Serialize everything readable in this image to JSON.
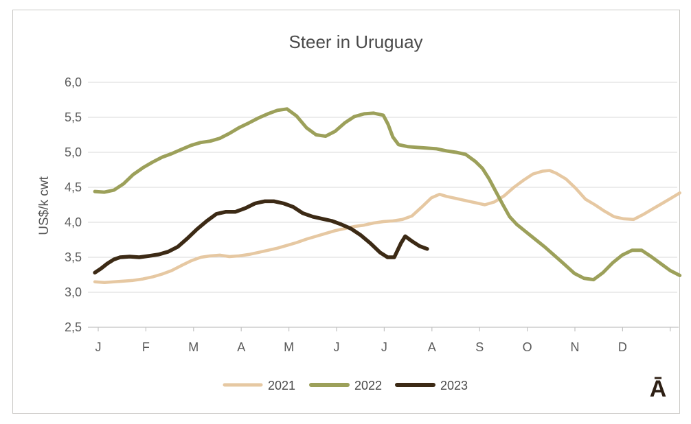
{
  "title": "Steer in Uruguay",
  "y_axis_title": "US$/k cwt",
  "annotation": "Ā",
  "colors": {
    "s2021": "#e6c8a2",
    "s2022": "#9ca05a",
    "s2023": "#3c2a15",
    "gridline": "#dadada",
    "axis_line": "#c2c2c2",
    "border": "#c9c7c4",
    "label_text": "#595959",
    "title_text": "#4a4a4a",
    "annotation_text": "#2e2015"
  },
  "legend": [
    {
      "label": "2021",
      "color": "#e6c8a2",
      "width": 5
    },
    {
      "label": "2022",
      "color": "#9ca05a",
      "width": 6
    },
    {
      "label": "2023",
      "color": "#3c2a15",
      "width": 6
    }
  ],
  "chart_data": {
    "type": "line",
    "title": "Steer in Uruguay",
    "xlabel": "",
    "ylabel": "US$/k cwt",
    "x_unit": "months from Jan 1 (weekly data points)",
    "categories": [
      "J",
      "F",
      "M",
      "A",
      "M",
      "J",
      "J",
      "A",
      "S",
      "O",
      "N",
      "D"
    ],
    "y_ticks": [
      {
        "label": "6,0",
        "value": 6.0
      },
      {
        "label": "5,5",
        "value": 5.5
      },
      {
        "label": "5,0",
        "value": 5.0
      },
      {
        "label": "4,5",
        "value": 4.5
      },
      {
        "label": "4,0",
        "value": 4.0
      },
      {
        "label": "3,5",
        "value": 3.5
      },
      {
        "label": "3,0",
        "value": 3.0
      },
      {
        "label": "2,5",
        "value": 2.5
      }
    ],
    "ylim": [
      2.5,
      6.0
    ],
    "grid": true,
    "legend_position": "bottom",
    "series": [
      {
        "name": "2021",
        "color": "#e6c8a2",
        "stroke_width": 4.5,
        "points": [
          [
            -0.07,
            3.15
          ],
          [
            0.13,
            3.14
          ],
          [
            0.33,
            3.15
          ],
          [
            0.53,
            3.16
          ],
          [
            0.73,
            3.17
          ],
          [
            0.94,
            3.19
          ],
          [
            1.14,
            3.22
          ],
          [
            1.34,
            3.26
          ],
          [
            1.54,
            3.31
          ],
          [
            1.74,
            3.38
          ],
          [
            1.95,
            3.45
          ],
          [
            2.15,
            3.5
          ],
          [
            2.35,
            3.52
          ],
          [
            2.55,
            3.53
          ],
          [
            2.75,
            3.51
          ],
          [
            2.95,
            3.52
          ],
          [
            3.16,
            3.54
          ],
          [
            3.36,
            3.57
          ],
          [
            3.56,
            3.6
          ],
          [
            3.76,
            3.63
          ],
          [
            3.96,
            3.67
          ],
          [
            4.16,
            3.71
          ],
          [
            4.37,
            3.76
          ],
          [
            4.57,
            3.8
          ],
          [
            4.77,
            3.84
          ],
          [
            4.97,
            3.88
          ],
          [
            5.17,
            3.91
          ],
          [
            5.37,
            3.94
          ],
          [
            5.58,
            3.96
          ],
          [
            5.78,
            3.99
          ],
          [
            5.98,
            4.01
          ],
          [
            6.18,
            4.02
          ],
          [
            6.38,
            4.04
          ],
          [
            6.58,
            4.09
          ],
          [
            6.79,
            4.22
          ],
          [
            6.99,
            4.35
          ],
          [
            7.16,
            4.4
          ],
          [
            7.31,
            4.37
          ],
          [
            7.51,
            4.34
          ],
          [
            7.71,
            4.31
          ],
          [
            7.91,
            4.28
          ],
          [
            8.11,
            4.25
          ],
          [
            8.31,
            4.29
          ],
          [
            8.52,
            4.38
          ],
          [
            8.72,
            4.5
          ],
          [
            8.92,
            4.6
          ],
          [
            9.12,
            4.69
          ],
          [
            9.32,
            4.73
          ],
          [
            9.47,
            4.74
          ],
          [
            9.61,
            4.7
          ],
          [
            9.81,
            4.62
          ],
          [
            10.01,
            4.49
          ],
          [
            10.22,
            4.33
          ],
          [
            10.42,
            4.25
          ],
          [
            10.62,
            4.16
          ],
          [
            10.82,
            4.08
          ],
          [
            11.02,
            4.05
          ],
          [
            11.23,
            4.04
          ],
          [
            11.43,
            4.11
          ],
          [
            11.63,
            4.19
          ],
          [
            11.83,
            4.27
          ],
          [
            12.03,
            4.35
          ],
          [
            12.2,
            4.42
          ]
        ]
      },
      {
        "name": "2022",
        "color": "#9ca05a",
        "stroke_width": 5,
        "points": [
          [
            -0.07,
            4.44
          ],
          [
            0.13,
            4.43
          ],
          [
            0.33,
            4.46
          ],
          [
            0.53,
            4.55
          ],
          [
            0.73,
            4.68
          ],
          [
            0.94,
            4.78
          ],
          [
            1.14,
            4.86
          ],
          [
            1.34,
            4.93
          ],
          [
            1.54,
            4.98
          ],
          [
            1.74,
            5.04
          ],
          [
            1.95,
            5.1
          ],
          [
            2.15,
            5.14
          ],
          [
            2.35,
            5.16
          ],
          [
            2.55,
            5.2
          ],
          [
            2.75,
            5.27
          ],
          [
            2.95,
            5.35
          ],
          [
            3.16,
            5.42
          ],
          [
            3.36,
            5.49
          ],
          [
            3.56,
            5.55
          ],
          [
            3.76,
            5.6
          ],
          [
            3.96,
            5.62
          ],
          [
            4.16,
            5.52
          ],
          [
            4.37,
            5.35
          ],
          [
            4.57,
            5.25
          ],
          [
            4.77,
            5.23
          ],
          [
            4.97,
            5.3
          ],
          [
            5.17,
            5.42
          ],
          [
            5.37,
            5.51
          ],
          [
            5.58,
            5.55
          ],
          [
            5.78,
            5.56
          ],
          [
            5.98,
            5.53
          ],
          [
            6.08,
            5.4
          ],
          [
            6.18,
            5.22
          ],
          [
            6.3,
            5.11
          ],
          [
            6.5,
            5.08
          ],
          [
            6.7,
            5.07
          ],
          [
            6.9,
            5.06
          ],
          [
            7.1,
            5.05
          ],
          [
            7.31,
            5.02
          ],
          [
            7.51,
            5.0
          ],
          [
            7.71,
            4.97
          ],
          [
            7.91,
            4.87
          ],
          [
            8.06,
            4.77
          ],
          [
            8.2,
            4.62
          ],
          [
            8.34,
            4.44
          ],
          [
            8.49,
            4.25
          ],
          [
            8.63,
            4.08
          ],
          [
            8.78,
            3.97
          ],
          [
            8.98,
            3.86
          ],
          [
            9.18,
            3.75
          ],
          [
            9.38,
            3.64
          ],
          [
            9.58,
            3.52
          ],
          [
            9.78,
            3.4
          ],
          [
            9.99,
            3.27
          ],
          [
            10.19,
            3.2
          ],
          [
            10.39,
            3.18
          ],
          [
            10.59,
            3.28
          ],
          [
            10.79,
            3.42
          ],
          [
            10.99,
            3.53
          ],
          [
            11.2,
            3.6
          ],
          [
            11.4,
            3.6
          ],
          [
            11.6,
            3.51
          ],
          [
            11.8,
            3.41
          ],
          [
            12.0,
            3.31
          ],
          [
            12.2,
            3.24
          ]
        ]
      },
      {
        "name": "2023",
        "color": "#3c2a15",
        "stroke_width": 5.5,
        "points": [
          [
            -0.07,
            3.28
          ],
          [
            0.06,
            3.34
          ],
          [
            0.19,
            3.41
          ],
          [
            0.33,
            3.47
          ],
          [
            0.46,
            3.5
          ],
          [
            0.66,
            3.51
          ],
          [
            0.86,
            3.5
          ],
          [
            1.07,
            3.52
          ],
          [
            1.27,
            3.54
          ],
          [
            1.47,
            3.58
          ],
          [
            1.67,
            3.65
          ],
          [
            1.87,
            3.77
          ],
          [
            2.07,
            3.9
          ],
          [
            2.28,
            4.02
          ],
          [
            2.48,
            4.12
          ],
          [
            2.68,
            4.15
          ],
          [
            2.88,
            4.15
          ],
          [
            3.08,
            4.2
          ],
          [
            3.29,
            4.27
          ],
          [
            3.49,
            4.3
          ],
          [
            3.69,
            4.3
          ],
          [
            3.89,
            4.27
          ],
          [
            4.09,
            4.22
          ],
          [
            4.29,
            4.13
          ],
          [
            4.5,
            4.08
          ],
          [
            4.7,
            4.05
          ],
          [
            4.9,
            4.02
          ],
          [
            5.1,
            3.97
          ],
          [
            5.3,
            3.91
          ],
          [
            5.5,
            3.82
          ],
          [
            5.71,
            3.7
          ],
          [
            5.91,
            3.57
          ],
          [
            6.07,
            3.5
          ],
          [
            6.21,
            3.5
          ],
          [
            6.35,
            3.7
          ],
          [
            6.44,
            3.8
          ],
          [
            6.58,
            3.73
          ],
          [
            6.74,
            3.66
          ],
          [
            6.9,
            3.62
          ]
        ]
      }
    ]
  }
}
